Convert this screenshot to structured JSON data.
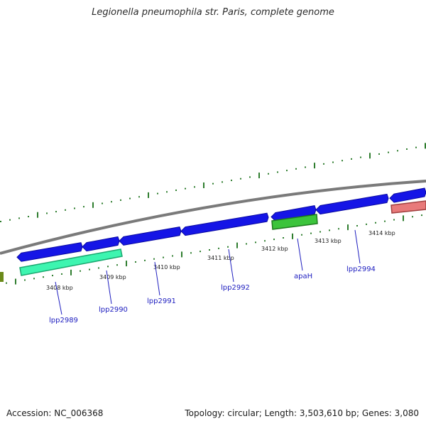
{
  "title": "Legionella pneumophila str. Paris, complete genome",
  "footer": {
    "accession": "Accession: NC_006368",
    "summary": "Topology: circular; Length: 3,503,610 bp; Genes: 3,080"
  },
  "colors": {
    "background": "#ffffff",
    "backbone": "#8c8c8c",
    "cds_forward": "#1515e6",
    "ticks": "#2e7d2e",
    "gene_green": "#3cc43c",
    "gene_cyan": "#3df5b0",
    "gene_red": "#e87a7a",
    "gene_olive": "#6b8a1a",
    "label_blue": "#2020c0"
  },
  "scale_labels": [
    "3408 kbp",
    "3409 kbp",
    "3410 kbp",
    "3411 kbp",
    "3412 kbp",
    "3413 kbp",
    "3414 kbp"
  ],
  "gene_labels": [
    "lpp2989",
    "lpp2990",
    "lpp2991",
    "lpp2992",
    "apaH",
    "lpp2994"
  ]
}
